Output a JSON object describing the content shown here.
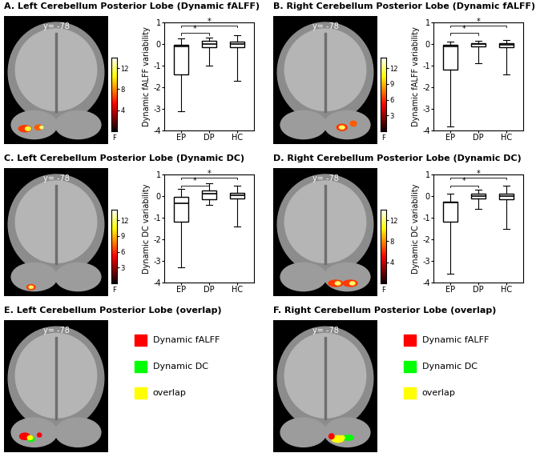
{
  "chart_data": [
    {
      "type": "box",
      "title": "A. Left Cerebellum Posterior Lobe (Dynamic fALFF)",
      "y_label": "Dynamic fALFF variability",
      "categories": [
        "EP",
        "DP",
        "HC"
      ],
      "box_stats": [
        {
          "whislo": -3.1,
          "q1": -1.4,
          "med": -0.1,
          "q3": -0.05,
          "whishi": 0.25
        },
        {
          "whislo": -1.0,
          "q1": -0.15,
          "med": 0.0,
          "q3": 0.15,
          "whishi": 0.3
        },
        {
          "whislo": -1.7,
          "q1": -0.15,
          "med": 0.0,
          "q3": 0.1,
          "whishi": 0.4
        }
      ],
      "ylim": [
        -4,
        1
      ],
      "yticks": [
        -4,
        -3,
        -2,
        -1,
        0,
        1
      ],
      "comparisons": [
        {
          "groups": [
            "EP",
            "DP"
          ],
          "y": 0.5,
          "label": "*"
        },
        {
          "groups": [
            "EP",
            "HC"
          ],
          "y": 0.85,
          "label": "*"
        }
      ],
      "brain_image": {
        "slice_label": "y= -78",
        "colorbar": {
          "range": [
            0,
            14
          ],
          "ticks": [
            4,
            8,
            12
          ],
          "label": "F"
        }
      }
    },
    {
      "type": "box",
      "title": "B. Right Cerebellum Posterior Lobe (Dynamic fALFF)",
      "y_label": "Dynamic fALFF variability",
      "categories": [
        "EP",
        "DP",
        "HC"
      ],
      "box_stats": [
        {
          "whislo": -3.8,
          "q1": -1.2,
          "med": -0.1,
          "q3": -0.05,
          "whishi": 0.1
        },
        {
          "whislo": -0.9,
          "q1": -0.1,
          "med": 0.0,
          "q3": 0.05,
          "whishi": 0.15
        },
        {
          "whislo": -1.4,
          "q1": -0.15,
          "med": -0.05,
          "q3": 0.05,
          "whishi": 0.2
        }
      ],
      "ylim": [
        -4,
        1
      ],
      "yticks": [
        -4,
        -3,
        -2,
        -1,
        0,
        1
      ],
      "comparisons": [
        {
          "groups": [
            "EP",
            "DP"
          ],
          "y": 0.5,
          "label": "*"
        },
        {
          "groups": [
            "EP",
            "HC"
          ],
          "y": 0.85,
          "label": "*"
        }
      ],
      "brain_image": {
        "slice_label": "y= -78",
        "colorbar": {
          "range": [
            0,
            14
          ],
          "ticks": [
            3,
            6,
            9,
            12
          ],
          "label": "F"
        }
      }
    },
    {
      "type": "box",
      "title": "C. Left Cerebellum Posterior Lobe (Dynamic DC)",
      "y_label": "Dynamic DC variability",
      "categories": [
        "EP",
        "DP",
        "HC"
      ],
      "box_stats": [
        {
          "whislo": -3.3,
          "q1": -1.2,
          "med": -0.35,
          "q3": -0.05,
          "whishi": 0.35
        },
        {
          "whislo": -0.4,
          "q1": -0.15,
          "med": 0.1,
          "q3": 0.25,
          "whishi": 0.6
        },
        {
          "whislo": -1.4,
          "q1": -0.1,
          "med": 0.05,
          "q3": 0.15,
          "whishi": 0.5
        }
      ],
      "ylim": [
        -4,
        1
      ],
      "yticks": [
        -4,
        -3,
        -2,
        -1,
        0,
        1
      ],
      "comparisons": [
        {
          "groups": [
            "EP",
            "DP"
          ],
          "y": 0.5,
          "label": "*"
        },
        {
          "groups": [
            "EP",
            "HC"
          ],
          "y": 0.85,
          "label": "*"
        }
      ],
      "brain_image": {
        "slice_label": "y= -78",
        "colorbar": {
          "range": [
            0,
            14
          ],
          "ticks": [
            3,
            6,
            9,
            12
          ],
          "label": "F"
        }
      }
    },
    {
      "type": "box",
      "title": "D. Right Cerebellum Posterior Lobe (Dynamic DC)",
      "y_label": "Dynamic DC variability",
      "categories": [
        "EP",
        "DP",
        "HC"
      ],
      "box_stats": [
        {
          "whislo": -3.6,
          "q1": -1.2,
          "med": -0.3,
          "q3": -0.25,
          "whishi": 0.1
        },
        {
          "whislo": -0.6,
          "q1": -0.1,
          "med": 0.0,
          "q3": 0.1,
          "whishi": 0.3
        },
        {
          "whislo": -1.5,
          "q1": -0.15,
          "med": 0.0,
          "q3": 0.1,
          "whishi": 0.5
        }
      ],
      "ylim": [
        -4,
        1
      ],
      "yticks": [
        -4,
        -3,
        -2,
        -1,
        0,
        1
      ],
      "comparisons": [
        {
          "groups": [
            "EP",
            "DP"
          ],
          "y": 0.5,
          "label": "*"
        },
        {
          "groups": [
            "EP",
            "HC"
          ],
          "y": 0.85,
          "label": "*"
        }
      ],
      "brain_image": {
        "slice_label": "y= -78",
        "colorbar": {
          "range": [
            0,
            14
          ],
          "ticks": [
            4,
            8,
            12
          ],
          "label": "F"
        }
      }
    }
  ],
  "overlap_panels": [
    {
      "title": "E. Left Cerebellum Posterior Lobe (overlap)",
      "slice_label": "y= -78",
      "legend": [
        {
          "name": "Dynamic fALFF",
          "color": "#ff0000"
        },
        {
          "name": "Dynamic DC",
          "color": "#00ff00"
        },
        {
          "name": "overlap",
          "color": "#ffff00"
        }
      ]
    },
    {
      "title": "F. Right Cerebellum Posterior Lobe (overlap)",
      "slice_label": "y= -78",
      "legend": [
        {
          "name": "Dynamic fALFF",
          "color": "#ff0000"
        },
        {
          "name": "Dynamic DC",
          "color": "#00ff00"
        },
        {
          "name": "overlap",
          "color": "#ffff00"
        }
      ]
    }
  ]
}
